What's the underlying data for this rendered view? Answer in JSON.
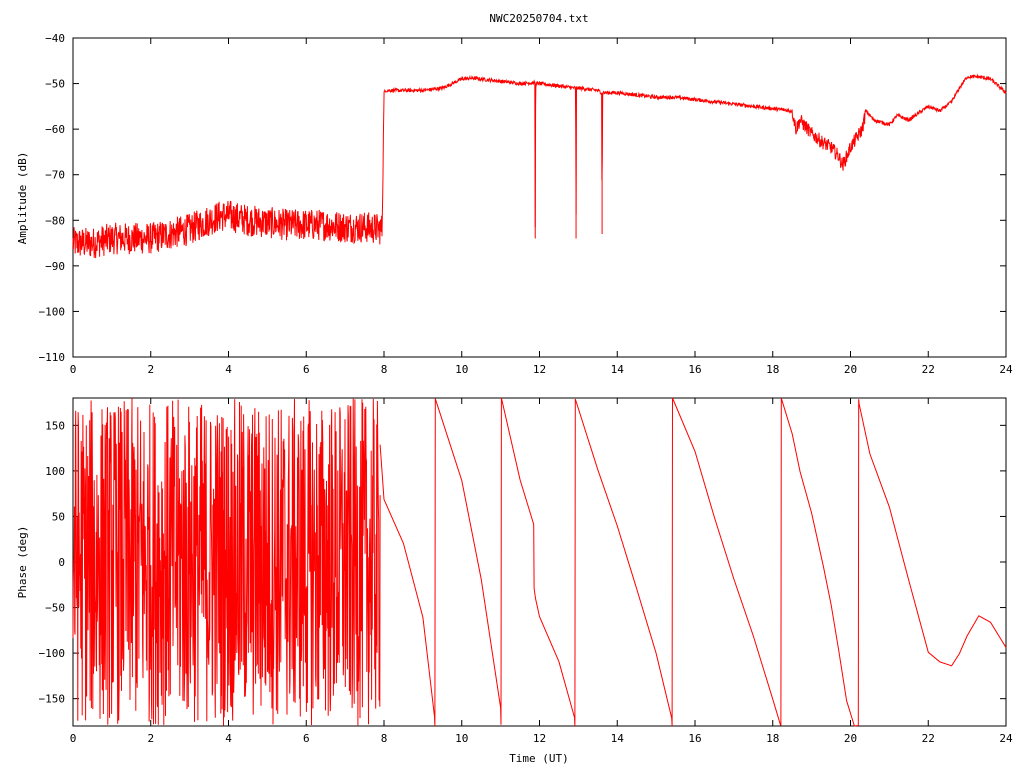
{
  "title": "NWC20250704.txt",
  "colors": {
    "trace": "#ff0000",
    "axes": "#000000",
    "background": "#ffffff"
  },
  "chart_data": [
    {
      "type": "line",
      "title": "NWC20250704.txt",
      "xlabel": "",
      "ylabel": "Amplitude (dB)",
      "xlim": [
        0,
        24
      ],
      "ylim": [
        -110,
        -40
      ],
      "xticks": [
        0,
        2,
        4,
        6,
        8,
        10,
        12,
        14,
        16,
        18,
        20,
        22,
        24
      ],
      "yticks": [
        -110,
        -100,
        -90,
        -80,
        -70,
        -60,
        -50,
        -40
      ],
      "grid": false,
      "legend": "none",
      "series": [
        {
          "x": [
            0,
            0.5,
            1,
            1.5,
            2,
            2.5,
            3,
            3.5,
            3.8,
            4,
            4.5,
            5,
            5.5,
            6,
            6.5,
            7,
            7.5,
            7.95,
            8.0,
            8.05,
            8.5,
            9,
            9.5,
            10,
            10.3,
            10.5,
            11,
            11.5,
            11.88,
            11.89,
            11.9,
            12,
            12.5,
            12.93,
            12.94,
            12.95,
            13,
            13.5,
            13.6,
            13.61,
            13.62,
            14,
            14.5,
            15,
            15.5,
            16,
            16.5,
            17,
            17.5,
            18,
            18.5,
            18.6,
            18.7,
            19,
            19.3,
            19.5,
            19.7,
            19.8,
            20,
            20.3,
            20.4,
            20.6,
            21,
            21.2,
            21.5,
            22,
            22.3,
            22.6,
            22.8,
            23,
            23.3,
            23.6,
            24
          ],
          "y": [
            -85,
            -85,
            -84,
            -84,
            -84,
            -83,
            -82,
            -80,
            -79,
            -79,
            -80,
            -80.5,
            -81,
            -81,
            -81,
            -81.5,
            -81.5,
            -82,
            -52,
            -51.5,
            -51.5,
            -51.5,
            -51,
            -49,
            -48.8,
            -49,
            -49.5,
            -50,
            -49.8,
            -84,
            -50,
            -50,
            -50.5,
            -51,
            -84,
            -51,
            -51,
            -51.5,
            -52,
            -83,
            -52,
            -52,
            -52.5,
            -53,
            -53,
            -53.5,
            -54,
            -54.5,
            -55,
            -55.5,
            -56,
            -60,
            -58,
            -61,
            -63,
            -64,
            -66,
            -68,
            -64,
            -60,
            -56,
            -58,
            -59,
            -57,
            -58,
            -55,
            -56,
            -54,
            -51,
            -48.5,
            -48.5,
            -49,
            -52
          ]
        }
      ]
    },
    {
      "type": "line",
      "title": "",
      "xlabel": "Time (UT)",
      "ylabel": "Phase (deg)",
      "xlim": [
        0,
        24
      ],
      "ylim": [
        -180,
        180
      ],
      "xticks": [
        0,
        2,
        4,
        6,
        8,
        10,
        12,
        14,
        16,
        18,
        20,
        22,
        24
      ],
      "yticks": [
        -150,
        -100,
        -50,
        0,
        50,
        100,
        150
      ],
      "grid": false,
      "legend": "none",
      "noise_until_x": 7.9,
      "series": [
        {
          "x": [
            7.9,
            8.0,
            8.5,
            9.0,
            9.3,
            9.31,
            9.32,
            10.0,
            10.5,
            11.0,
            11.01,
            11.02,
            11.5,
            11.85,
            11.86,
            11.9,
            12.0,
            12.5,
            12.9,
            12.91,
            12.92,
            13.5,
            14.0,
            14.5,
            15.0,
            15.4,
            15.41,
            15.42,
            16.0,
            16.5,
            17.0,
            17.5,
            18.0,
            18.2,
            18.21,
            18.22,
            18.5,
            18.7,
            19.0,
            19.3,
            19.5,
            19.7,
            19.9,
            20.1,
            20.2,
            20.21,
            20.22,
            20.5,
            21.0,
            21.5,
            22.0,
            22.3,
            22.6,
            22.8,
            23.0,
            23.3,
            23.6,
            24.0
          ],
          "y": [
            130,
            70,
            20,
            -60,
            -170,
            -180,
            180,
            90,
            -20,
            -160,
            -180,
            180,
            90,
            40,
            -30,
            -40,
            -60,
            -110,
            -170,
            -180,
            180,
            100,
            40,
            -30,
            -100,
            -170,
            -180,
            180,
            120,
            50,
            -20,
            -80,
            -150,
            -180,
            -180,
            180,
            140,
            100,
            50,
            0,
            -50,
            -100,
            -150,
            -180,
            -180,
            180,
            175,
            120,
            60,
            -20,
            -100,
            -110,
            -115,
            -100,
            -80,
            -60,
            -65,
            -95
          ]
        }
      ]
    }
  ]
}
